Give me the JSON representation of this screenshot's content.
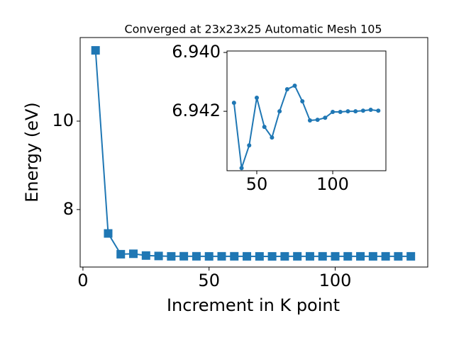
{
  "chart_data": [
    {
      "type": "line",
      "title": "Converged at 23x23x25 Automatic Mesh 105",
      "x_label": "Increment in K point",
      "y_label": "Energy (eV)",
      "marker": "square",
      "color": "#1f77b4",
      "x": [
        5,
        10,
        15,
        20,
        25,
        30,
        35,
        40,
        45,
        50,
        55,
        60,
        65,
        70,
        75,
        80,
        85,
        90,
        95,
        100,
        105,
        110,
        115,
        120,
        125,
        130
      ],
      "values": [
        11.6,
        7.46,
        6.99,
        7.0,
        6.96,
        6.95,
        6.94171,
        6.94393,
        6.94316,
        6.94154,
        6.94253,
        6.94289,
        6.942,
        6.94125,
        6.94113,
        6.94166,
        6.94231,
        6.94229,
        6.94222,
        6.94202,
        6.94202,
        6.942,
        6.942,
        6.94198,
        6.94195,
        6.94198
      ],
      "xlim": [
        -1.1,
        136.7
      ],
      "ylim": [
        6.7,
        11.89
      ],
      "xticks": [
        0,
        50,
        100
      ],
      "yticks": [
        8,
        10
      ]
    },
    {
      "type": "line",
      "marker": "circle",
      "color": "#1f77b4",
      "x": [
        35,
        40,
        45,
        50,
        55,
        60,
        65,
        70,
        75,
        80,
        85,
        90,
        95,
        100,
        105,
        110,
        115,
        120,
        125,
        130
      ],
      "values": [
        6.94171,
        6.94393,
        6.94316,
        6.94154,
        6.94253,
        6.94289,
        6.942,
        6.94125,
        6.94113,
        6.94166,
        6.94231,
        6.94229,
        6.94222,
        6.94202,
        6.94202,
        6.942,
        6.942,
        6.94198,
        6.94195,
        6.94198
      ],
      "xlim": [
        30.4,
        135
      ],
      "ylim": [
        6.94402,
        6.93995
      ],
      "xticks": [
        50,
        100
      ],
      "yticks": [
        {
          "value": 6.94,
          "label": "6.940"
        },
        {
          "value": 6.942,
          "label": "6.942"
        }
      ]
    }
  ]
}
